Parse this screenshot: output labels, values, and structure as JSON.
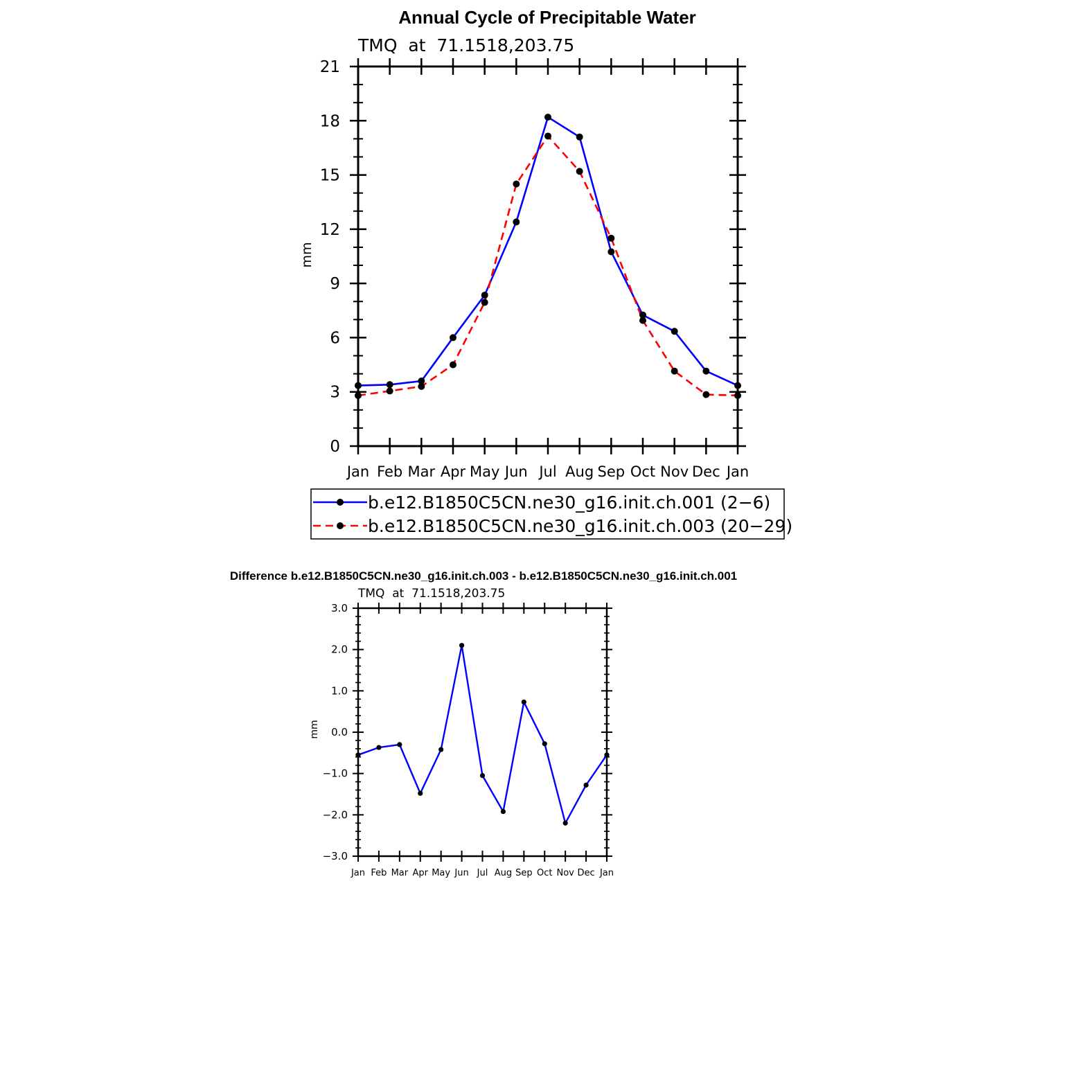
{
  "chart_data": [
    {
      "type": "line",
      "title": "Annual Cycle of Precipitable Water",
      "subtitle": "TMQ  at  71.1518,203.75",
      "ylabel": "mm",
      "xlabel": "",
      "categories": [
        "Jan",
        "Feb",
        "Mar",
        "Apr",
        "May",
        "Jun",
        "Jul",
        "Aug",
        "Sep",
        "Oct",
        "Nov",
        "Dec",
        "Jan"
      ],
      "ylim": [
        0,
        21
      ],
      "yticks": [
        "0",
        "3",
        "6",
        "9",
        "12",
        "15",
        "18",
        "21"
      ],
      "yticks_values": [
        0,
        3,
        6,
        9,
        12,
        15,
        18,
        21
      ],
      "grid": false,
      "legend_position": "bottom",
      "series": [
        {
          "name": "b.e12.B1850C5CN.ne30_g16.init.ch.001 (2−6)",
          "color": "#0000ff",
          "dash": "solid",
          "values": [
            3.35,
            3.4,
            3.6,
            6.0,
            8.35,
            12.4,
            18.2,
            17.1,
            10.75,
            7.25,
            6.35,
            4.15,
            3.35
          ]
        },
        {
          "name": "b.e12.B1850C5CN.ne30_g16.init.ch.003 (20−29)",
          "color": "#ff0000",
          "dash": "dashed",
          "values": [
            2.8,
            3.05,
            3.3,
            4.5,
            7.95,
            14.5,
            17.15,
            15.2,
            11.5,
            6.95,
            4.15,
            2.85,
            2.8
          ]
        }
      ]
    },
    {
      "type": "line",
      "title": "Difference b.e12.B1850C5CN.ne30_g16.init.ch.003 - b.e12.B1850C5CN.ne30_g16.init.ch.001",
      "subtitle": "TMQ  at  71.1518,203.75",
      "ylabel": "mm",
      "xlabel": "",
      "categories": [
        "Jan",
        "Feb",
        "Mar",
        "Apr",
        "May",
        "Jun",
        "Jul",
        "Aug",
        "Sep",
        "Oct",
        "Nov",
        "Dec",
        "Jan"
      ],
      "ylim": [
        -3,
        3
      ],
      "yticks": [
        "−3.0",
        "−2.0",
        "−1.0",
        "0.0",
        "1.0",
        "2.0",
        "3.0"
      ],
      "yticks_values": [
        -3,
        -2,
        -1,
        0,
        1,
        2,
        3
      ],
      "grid": false,
      "series": [
        {
          "name": "",
          "color": "#0000ff",
          "dash": "solid",
          "values": [
            -0.55,
            -0.37,
            -0.3,
            -1.48,
            -0.42,
            2.1,
            -1.05,
            -1.92,
            0.73,
            -0.28,
            -2.2,
            -1.28,
            -0.55
          ]
        }
      ]
    }
  ]
}
